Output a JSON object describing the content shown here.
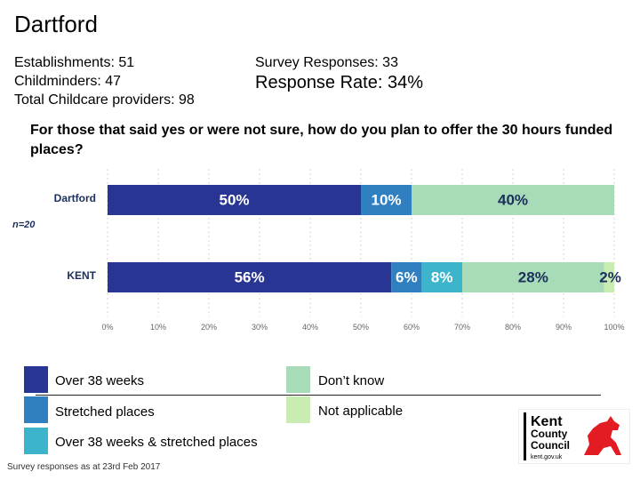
{
  "page": {
    "title": "Dartford",
    "establishments": "Establishments: 51",
    "childminders": "Childminders: 47",
    "total_providers": "Total Childcare providers: 98",
    "survey_responses": "Survey Responses: 33",
    "response_rate": "Response Rate: 34%",
    "question": "For those that said yes or were not sure, how do you plan to offer the 30 hours funded places?",
    "footnote": "Survey responses as at 23rd Feb 2017"
  },
  "logo": {
    "line1": "Kent",
    "line2": "County",
    "line3": "Council",
    "url": "kent.gov.uk"
  },
  "colors": {
    "over38": "#283593",
    "stretched": "#2f7fc1",
    "both": "#3cb5cc",
    "dontknow": "#a8dcb8",
    "notapplicable": "#c9ecb2"
  },
  "chart_data": {
    "type": "bar",
    "orientation": "horizontal",
    "stacked": true,
    "categories": [
      "Dartford",
      "KENT"
    ],
    "sample_label": "n=20",
    "xlim": [
      0,
      100
    ],
    "x_ticks": [
      "0%",
      "10%",
      "20%",
      "30%",
      "40%",
      "50%",
      "60%",
      "70%",
      "80%",
      "90%",
      "100%"
    ],
    "series": [
      {
        "name": "Over 38 weeks",
        "key": "over38",
        "values": [
          50,
          56
        ],
        "labels": [
          "50%",
          "56%"
        ]
      },
      {
        "name": "Stretched places",
        "key": "stretched",
        "values": [
          10,
          6
        ],
        "labels": [
          "10%",
          "6%"
        ]
      },
      {
        "name": "Over 38 weeks & stretched places",
        "key": "both",
        "values": [
          0,
          8
        ],
        "labels": [
          "",
          "8%"
        ]
      },
      {
        "name": "Don’t know",
        "key": "dontknow",
        "values": [
          40,
          28
        ],
        "labels": [
          "40%",
          "28%"
        ]
      },
      {
        "name": "Not applicable",
        "key": "notapplicable",
        "values": [
          0,
          2
        ],
        "labels": [
          "",
          "2%"
        ]
      }
    ]
  }
}
